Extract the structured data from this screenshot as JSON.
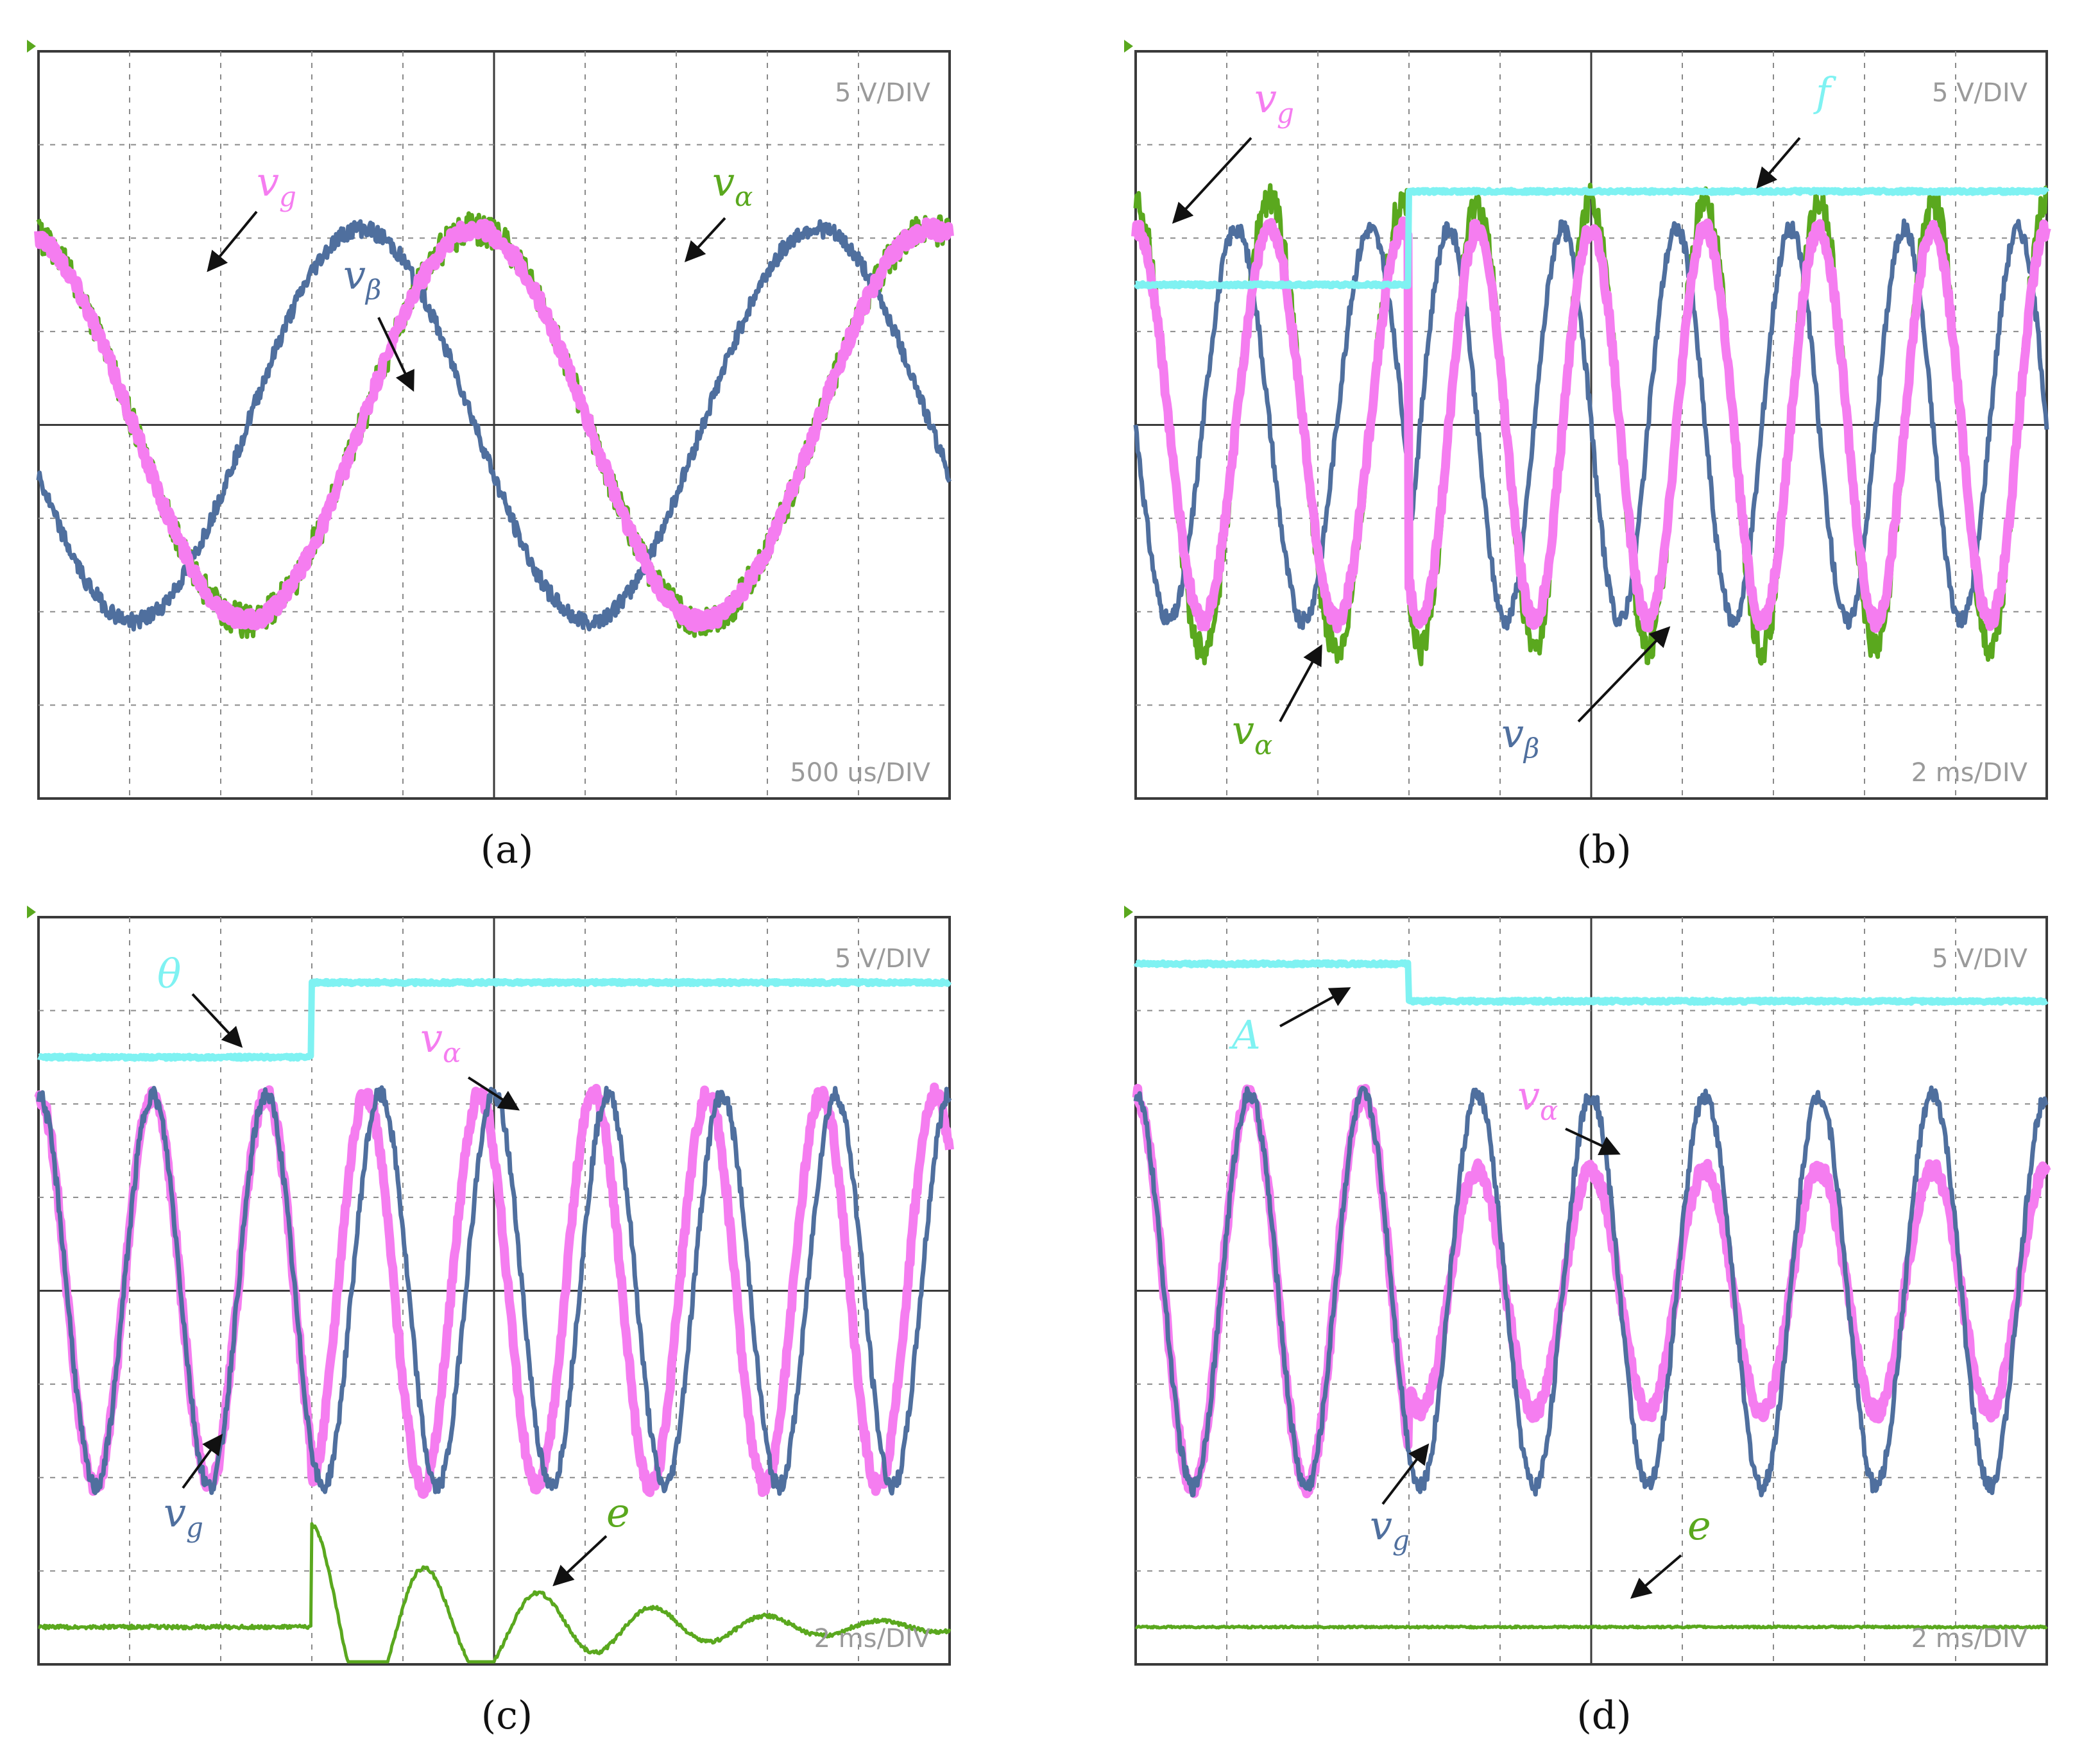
{
  "colors": {
    "v_g_pink": "#f57df0",
    "v_alpha_green": "#5aa81e",
    "v_beta_blue": "#4f6f9e",
    "cyan": "#7ff2f2",
    "grid": "#8a8a8a",
    "frame": "#3a3a3a",
    "scale_text": "#9a9a9a",
    "arrow": "#111111"
  },
  "chart_data": [
    {
      "type": "line",
      "caption": "(a)",
      "volt_scale": "5 V/DIV",
      "time_scale": "500 us/DIV",
      "grid": true,
      "divisions": {
        "x": 10,
        "y": 8
      },
      "time_range_ms": [
        0,
        5
      ],
      "series": [
        {
          "name": "v_g",
          "color_key": "v_g_pink",
          "amplitude_div": 2.1,
          "frequency_hz": 400,
          "phase_deg": 15
        },
        {
          "name": "v_α",
          "color_key": "v_alpha_green",
          "amplitude_div": 2.1,
          "frequency_hz": 400,
          "phase_deg": 15
        },
        {
          "name": "v_β",
          "color_key": "v_beta_blue",
          "amplitude_div": 2.1,
          "frequency_hz": 400,
          "phase_deg": 105
        }
      ],
      "labels": [
        {
          "text": "v",
          "sub": "g",
          "color_key": "v_g_pink"
        },
        {
          "text": "v",
          "sub": "α",
          "color_key": "v_alpha_green"
        },
        {
          "text": "v",
          "sub": "β",
          "color_key": "v_beta_blue"
        }
      ]
    },
    {
      "type": "line",
      "caption": "(b)",
      "volt_scale": "5 V/DIV",
      "time_scale": "2 ms/DIV",
      "grid": true,
      "divisions": {
        "x": 10,
        "y": 8
      },
      "time_range_ms": [
        0,
        20
      ],
      "series": [
        {
          "name": "f",
          "color_key": "cyan",
          "kind": "step",
          "before_div": 1.5,
          "after_div": 2.5,
          "step_time_ms": 6
        },
        {
          "name": "v_g",
          "color_key": "v_g_pink",
          "amplitude_div": 2.1,
          "frequency_hz_before": 340,
          "frequency_hz_after": 400,
          "step_time_ms": 6
        },
        {
          "name": "v_α",
          "color_key": "v_alpha_green",
          "amplitude_div": 2.4,
          "frequency_hz_before": 340,
          "frequency_hz_after": 400,
          "step_time_ms": 6
        },
        {
          "name": "v_β",
          "color_key": "v_beta_blue",
          "amplitude_div": 2.1,
          "frequency_hz_before": 340,
          "frequency_hz_after": 400,
          "step_time_ms": 6,
          "phase_shift_deg": 90
        }
      ],
      "labels": [
        {
          "text": "v",
          "sub": "g",
          "color_key": "v_g_pink"
        },
        {
          "text": "f",
          "sub": "",
          "color_key": "cyan"
        },
        {
          "text": "v",
          "sub": "α",
          "color_key": "v_alpha_green"
        },
        {
          "text": "v",
          "sub": "β",
          "color_key": "v_beta_blue"
        }
      ]
    },
    {
      "type": "line",
      "caption": "(c)",
      "volt_scale": "5 V/DIV",
      "time_scale": "2 ms/DIV",
      "grid": true,
      "divisions": {
        "x": 10,
        "y": 8
      },
      "time_range_ms": [
        0,
        20
      ],
      "series": [
        {
          "name": "θ",
          "color_key": "cyan",
          "kind": "step",
          "before_div": 2.5,
          "after_div": 3.3,
          "step_time_ms": 6
        },
        {
          "name": "v_g",
          "color_key": "v_beta_blue",
          "amplitude_div": 2.1,
          "frequency_hz": 400,
          "phase_shift_deg_after": 0
        },
        {
          "name": "v_α",
          "color_key": "v_g_pink",
          "amplitude_div": 2.1,
          "frequency_hz": 400,
          "phase_shift_deg_after": 45,
          "step_time_ms": 6
        },
        {
          "name": "e",
          "color_key": "v_alpha_green",
          "kind": "decaying_oscillation",
          "offset_div": -3.6,
          "initial_amplitude_div": 1.1,
          "step_time_ms": 6
        }
      ],
      "labels": [
        {
          "text": "θ",
          "sub": "",
          "color_key": "cyan"
        },
        {
          "text": "v",
          "sub": "α",
          "color_key": "v_g_pink"
        },
        {
          "text": "v",
          "sub": "g",
          "color_key": "v_beta_blue"
        },
        {
          "text": "e",
          "sub": "",
          "color_key": "v_alpha_green"
        }
      ]
    },
    {
      "type": "line",
      "caption": "(d)",
      "volt_scale": "5 V/DIV",
      "time_scale": "2 ms/DIV",
      "grid": true,
      "divisions": {
        "x": 10,
        "y": 8
      },
      "time_range_ms": [
        0,
        20
      ],
      "series": [
        {
          "name": "A",
          "color_key": "cyan",
          "kind": "step",
          "before_div": 3.5,
          "after_div": 3.1,
          "step_time_ms": 6
        },
        {
          "name": "v_g",
          "color_key": "v_beta_blue",
          "amplitude_div": 2.1,
          "frequency_hz": 400
        },
        {
          "name": "v_α",
          "color_key": "v_g_pink",
          "amplitude_div_before": 2.1,
          "amplitude_div_after": 1.3,
          "frequency_hz": 400,
          "step_time_ms": 6
        },
        {
          "name": "e",
          "color_key": "v_alpha_green",
          "kind": "flat",
          "offset_div": -3.6
        }
      ],
      "labels": [
        {
          "text": "A",
          "sub": "",
          "color_key": "cyan"
        },
        {
          "text": "v",
          "sub": "α",
          "color_key": "v_g_pink"
        },
        {
          "text": "v",
          "sub": "g",
          "color_key": "v_beta_blue"
        },
        {
          "text": "e",
          "sub": "",
          "color_key": "v_alpha_green"
        }
      ]
    }
  ]
}
